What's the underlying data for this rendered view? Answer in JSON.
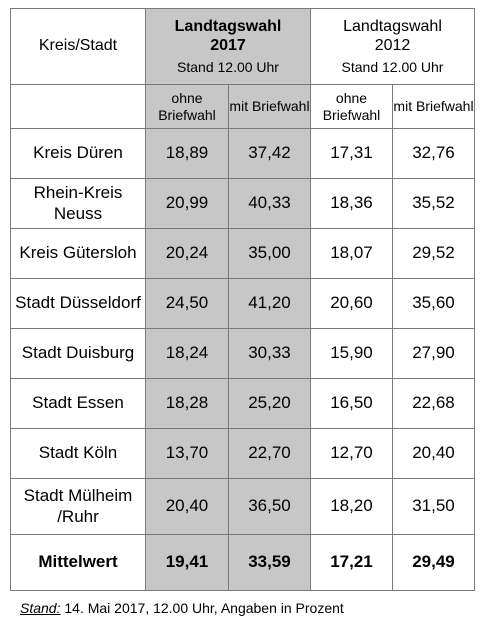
{
  "header": {
    "first_col": "Kreis/Stadt",
    "y2017": {
      "line1": "Landtagswahl",
      "line2": "2017",
      "stand": "Stand 12.00 Uhr"
    },
    "y2012": {
      "line1": "Landtagswahl",
      "line2": "2012",
      "stand": "Stand 12.00 Uhr"
    },
    "sub": [
      "ohne Briefwahl",
      "mit Briefwahl",
      "ohne Briefwahl",
      "mit Briefwahl"
    ]
  },
  "rows": [
    {
      "name": "Kreis Düren",
      "v": [
        "18,89",
        "37,42",
        "17,31",
        "32,76"
      ]
    },
    {
      "name": "Rhein-Kreis Neuss",
      "v": [
        "20,99",
        "40,33",
        "18,36",
        "35,52"
      ]
    },
    {
      "name": "Kreis Gütersloh",
      "v": [
        "20,24",
        "35,00",
        "18,07",
        "29,52"
      ]
    },
    {
      "name": "Stadt Düsseldorf",
      "v": [
        "24,50",
        "41,20",
        "20,60",
        "35,60"
      ]
    },
    {
      "name": "Stadt Duisburg",
      "v": [
        "18,24",
        "30,33",
        "15,90",
        "27,90"
      ]
    },
    {
      "name": "Stadt Essen",
      "v": [
        "18,28",
        "25,20",
        "16,50",
        "22,68"
      ]
    },
    {
      "name": "Stadt Köln",
      "v": [
        "13,70",
        "22,70",
        "12,70",
        "20,40"
      ]
    },
    {
      "name": "Stadt Mülheim /Ruhr",
      "v": [
        "20,40",
        "36,50",
        "18,20",
        "31,50"
      ]
    }
  ],
  "mean": {
    "name": "Mittelwert",
    "v": [
      "19,41",
      "33,59",
      "17,21",
      "29,49"
    ]
  },
  "footer": {
    "label": "Stand:",
    "text": " 14. Mai 2017, 12.00 Uhr, Angaben in Prozent"
  }
}
